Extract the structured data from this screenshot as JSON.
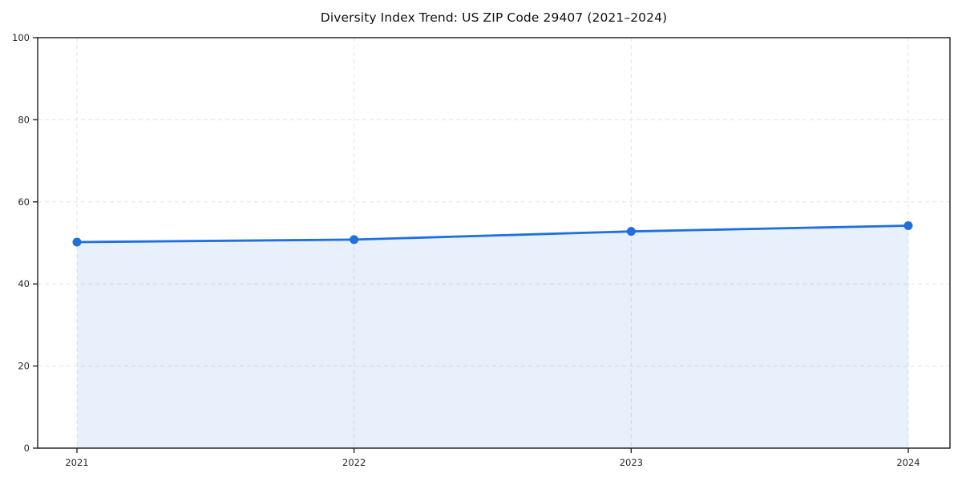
{
  "chart_data": {
    "type": "area",
    "title": "Diversity Index Trend: US ZIP Code 29407 (2021–2024)",
    "xlabel": "",
    "ylabel": "",
    "x": [
      "2021",
      "2022",
      "2023",
      "2024"
    ],
    "series": [
      {
        "name": "Diversity Index",
        "values": [
          50.2,
          50.8,
          52.8,
          54.2
        ]
      }
    ],
    "ylim": [
      0,
      100
    ],
    "yticks": [
      0,
      20,
      40,
      60,
      80,
      100
    ],
    "grid": "on",
    "grid_style": "dashed",
    "legend_position": "none",
    "colors": {
      "line": "#1f6fe0",
      "marker": "#1f6fe0",
      "fill": "#1f6fe0",
      "fill_opacity": 0.1,
      "grid": "#e3e3e3",
      "spine": "#1a1a1a",
      "tick_label": "#262626",
      "background": "#ffffff"
    }
  }
}
